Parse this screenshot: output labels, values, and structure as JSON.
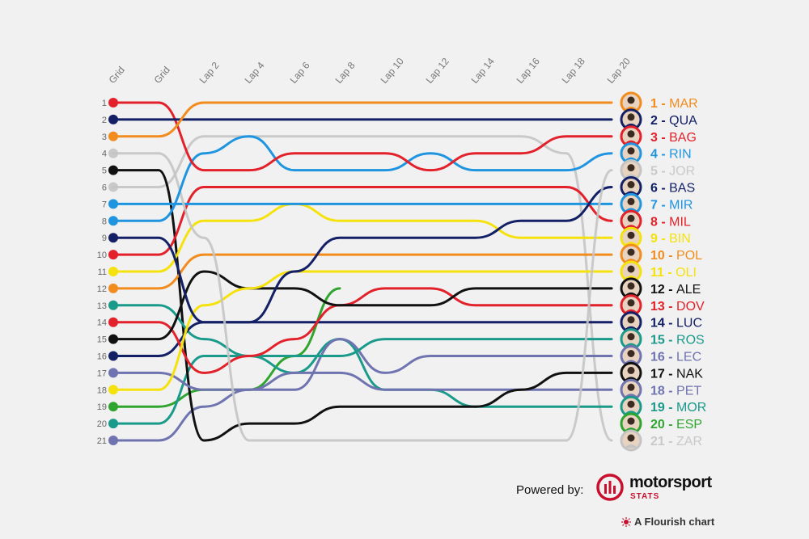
{
  "chart_data": {
    "type": "line",
    "subtype": "bump",
    "columns": [
      "Grid",
      "Grid",
      "Lap 2",
      "Lap 4",
      "Lap 6",
      "Lap 8",
      "Lap 10",
      "Lap 12",
      "Lap 14",
      "Lap 16",
      "Lap 18",
      "Lap 20"
    ],
    "positions": [
      "1",
      "2",
      "3",
      "4",
      "5",
      "6",
      "7",
      "8",
      "9",
      "10",
      "11",
      "12",
      "13",
      "14",
      "15",
      "16",
      "17",
      "18",
      "19",
      "20",
      "21"
    ],
    "series": [
      {
        "name": "MAR",
        "color": "#f28c1e",
        "final": 1,
        "ranks": [
          3,
          3,
          1,
          1,
          1,
          1,
          1,
          1,
          1,
          1,
          1,
          1
        ],
        "opacity": 1
      },
      {
        "name": "QUA",
        "color": "#142066",
        "final": 2,
        "ranks": [
          2,
          2,
          2,
          2,
          2,
          2,
          2,
          2,
          2,
          2,
          2,
          2
        ],
        "opacity": 1
      },
      {
        "name": "BAG",
        "color": "#e3212b",
        "final": 3,
        "ranks": [
          1,
          1,
          5,
          5,
          4,
          4,
          4,
          5,
          4,
          4,
          3,
          3
        ],
        "opacity": 1
      },
      {
        "name": "RIN",
        "color": "#1f95e0",
        "final": 4,
        "ranks": [
          8,
          8,
          4,
          3,
          5,
          5,
          5,
          4,
          5,
          5,
          5,
          4
        ],
        "opacity": 1
      },
      {
        "name": "JOR",
        "color": "#c4c4c4",
        "final": 5,
        "ranks": [
          4,
          4,
          9,
          21,
          21,
          21,
          21,
          21,
          21,
          21,
          21,
          5
        ],
        "opacity": 0.9
      },
      {
        "name": "BAS",
        "color": "#142066",
        "final": 6,
        "ranks": [
          9,
          9,
          14,
          14,
          11,
          9,
          9,
          9,
          9,
          8,
          8,
          6
        ],
        "opacity": 1
      },
      {
        "name": "MIR",
        "color": "#1f95e0",
        "final": 7,
        "ranks": [
          7,
          7,
          7,
          7,
          7,
          7,
          7,
          7,
          7,
          7,
          7,
          7
        ],
        "opacity": 1
      },
      {
        "name": "MIL",
        "color": "#e3212b",
        "final": 8,
        "ranks": [
          10,
          10,
          6,
          6,
          6,
          6,
          6,
          6,
          6,
          6,
          6,
          8
        ],
        "opacity": 1
      },
      {
        "name": "BIN",
        "color": "#f5e20d",
        "final": 9,
        "ranks": [
          11,
          11,
          8,
          8,
          7,
          8,
          8,
          8,
          8,
          9,
          9,
          9
        ],
        "opacity": 1
      },
      {
        "name": "POL",
        "color": "#f28c1e",
        "final": 10,
        "ranks": [
          12,
          12,
          10,
          10,
          10,
          10,
          10,
          10,
          10,
          10,
          10,
          10
        ],
        "opacity": 1
      },
      {
        "name": "OLI",
        "color": "#f5e20d",
        "final": 11,
        "ranks": [
          18,
          18,
          13,
          12,
          11,
          11,
          11,
          11,
          11,
          11,
          11,
          11
        ],
        "opacity": 1
      },
      {
        "name": "ALE",
        "color": "#111111",
        "final": 12,
        "ranks": [
          15,
          15,
          11,
          12,
          12,
          13,
          13,
          13,
          12,
          12,
          12,
          12
        ],
        "opacity": 1
      },
      {
        "name": "DOV",
        "color": "#e3212b",
        "final": 13,
        "ranks": [
          14,
          14,
          17,
          16,
          15,
          13,
          12,
          12,
          13,
          13,
          13,
          13
        ],
        "opacity": 1
      },
      {
        "name": "LUC",
        "color": "#142066",
        "final": 14,
        "ranks": [
          16,
          16,
          14,
          14,
          14,
          14,
          14,
          14,
          14,
          14,
          14,
          14
        ],
        "opacity": 1
      },
      {
        "name": "ROS",
        "color": "#1a9a8a",
        "final": 15,
        "ranks": [
          13,
          13,
          15,
          16,
          16,
          16,
          15,
          15,
          15,
          15,
          15,
          15
        ],
        "opacity": 1
      },
      {
        "name": "LEC",
        "color": "#6f73b0",
        "final": 16,
        "ranks": [
          17,
          17,
          18,
          18,
          18,
          15,
          17,
          16,
          16,
          16,
          16,
          16
        ],
        "opacity": 1
      },
      {
        "name": "NAK",
        "color": "#111111",
        "final": 17,
        "ranks": [
          5,
          5,
          21,
          20,
          20,
          19,
          19,
          19,
          19,
          18,
          17,
          17
        ],
        "opacity": 1
      },
      {
        "name": "PET",
        "color": "#6f73b0",
        "final": 18,
        "ranks": [
          21,
          21,
          19,
          18,
          17,
          17,
          18,
          18,
          18,
          18,
          18,
          18
        ],
        "opacity": 1
      },
      {
        "name": "MOR",
        "color": "#1a9a8a",
        "final": 19,
        "ranks": [
          20,
          20,
          16,
          16,
          17,
          15,
          18,
          18,
          19,
          19,
          19,
          19
        ],
        "opacity": 1
      },
      {
        "name": "ESP",
        "color": "#2fa52f",
        "final": 20,
        "ranks": [
          19,
          19,
          18,
          18,
          16,
          12,
          20,
          20,
          20,
          20,
          20,
          20
        ],
        "truncate_at": 5,
        "opacity": 1
      },
      {
        "name": "ZAR",
        "color": "#c4c4c4",
        "final": 21,
        "ranks": [
          6,
          6,
          3,
          3,
          3,
          3,
          3,
          3,
          3,
          3,
          4,
          21
        ],
        "opacity": 0.9
      }
    ]
  },
  "footer": {
    "powered_label": "Powered by:",
    "brand_name": "motorsport",
    "brand_sub": "STATS",
    "flourish_label": "A Flourish chart"
  }
}
